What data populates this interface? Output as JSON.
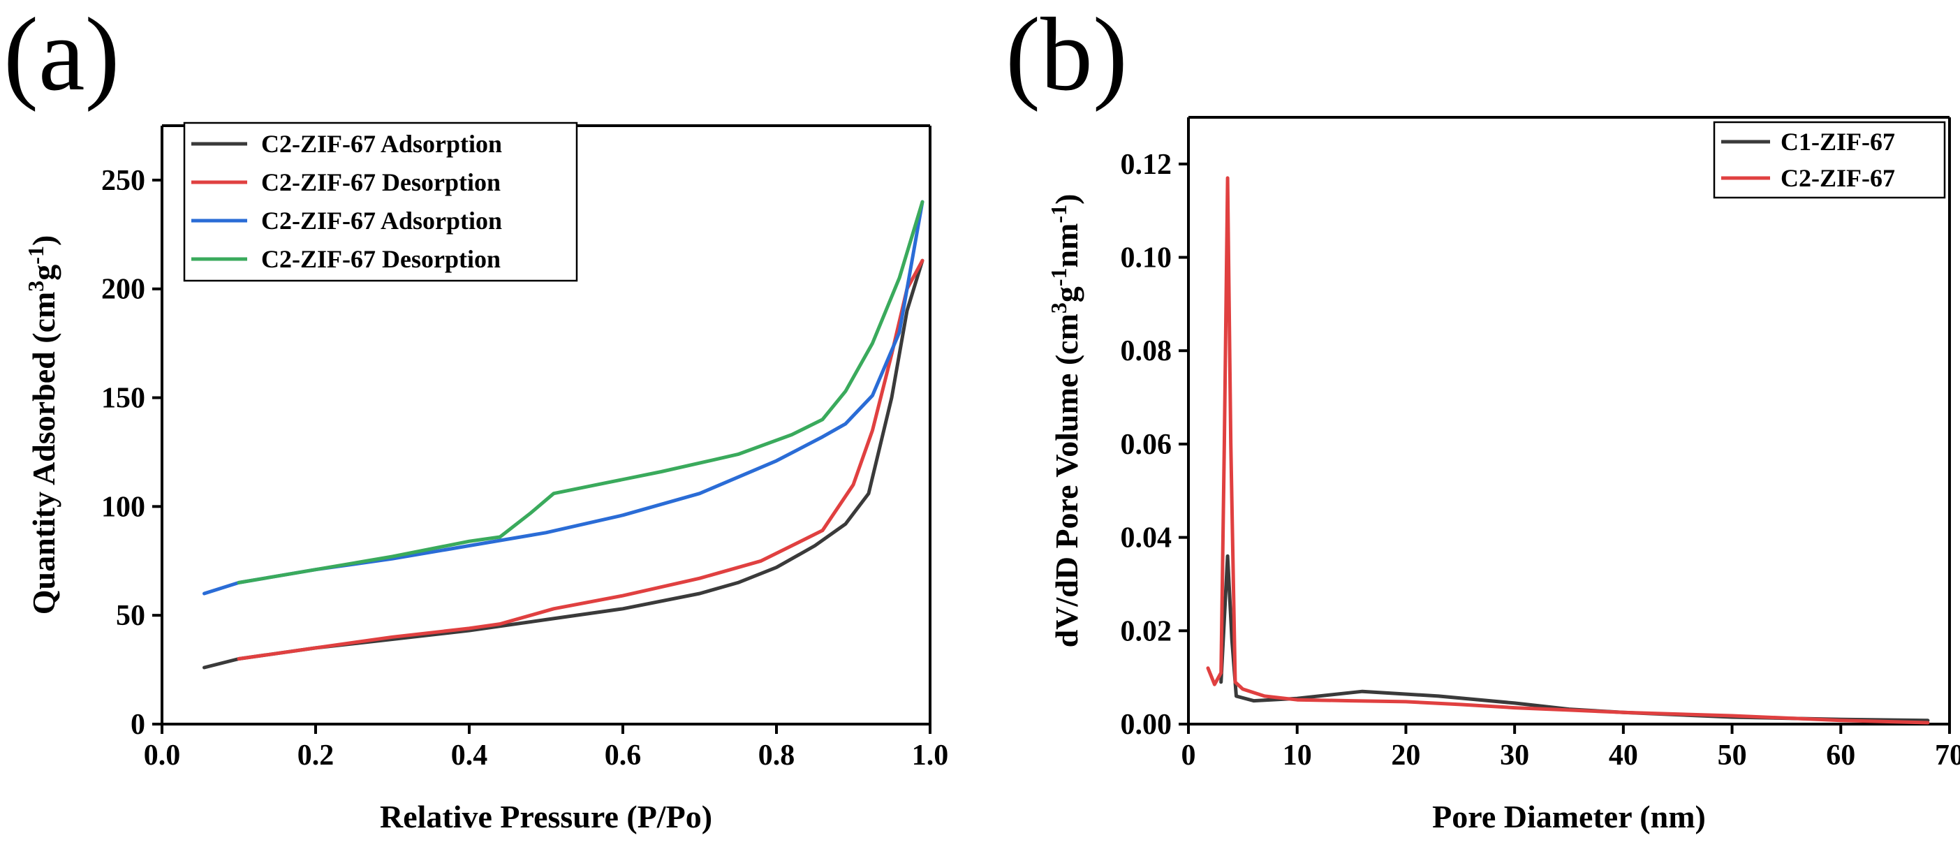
{
  "chart_data": [
    {
      "type": "line",
      "panel_label": "(a)",
      "title": "",
      "xlabel": "Relative Pressure (P/Po)",
      "ylabel_parts": [
        "Quantity Adsorbed (cm",
        "3",
        "g",
        "-1",
        ")"
      ],
      "xlim": [
        0.0,
        1.0
      ],
      "ylim": [
        0,
        275
      ],
      "x_ticks": [
        0.0,
        0.2,
        0.4,
        0.6,
        0.8,
        1.0
      ],
      "x_tick_labels": [
        "0.0",
        "0.2",
        "0.4",
        "0.6",
        "0.8",
        "1.0"
      ],
      "y_ticks": [
        0,
        50,
        100,
        150,
        200,
        250
      ],
      "y_tick_labels": [
        "0",
        "50",
        "100",
        "150",
        "200",
        "250"
      ],
      "grid": false,
      "legend_position": "top-left",
      "series": [
        {
          "name": "C2-ZIF-67 Adsorption",
          "color": "#3a3a3a",
          "x": [
            0.055,
            0.1,
            0.2,
            0.3,
            0.4,
            0.5,
            0.6,
            0.7,
            0.75,
            0.8,
            0.85,
            0.89,
            0.92,
            0.95,
            0.97,
            0.99
          ],
          "y": [
            26,
            30,
            35,
            39,
            43,
            48,
            53,
            60,
            65,
            72,
            82,
            92,
            106,
            150,
            190,
            213
          ]
        },
        {
          "name": "C2-ZIF-67 Desorption",
          "color": "#e04040",
          "x": [
            0.99,
            0.97,
            0.95,
            0.925,
            0.9,
            0.86,
            0.82,
            0.78,
            0.7,
            0.6,
            0.51,
            0.48,
            0.44,
            0.4,
            0.3,
            0.2,
            0.1
          ],
          "y": [
            213,
            200,
            170,
            135,
            110,
            89,
            82,
            75,
            67,
            59,
            53,
            50,
            46,
            44,
            40,
            35,
            30
          ]
        },
        {
          "name": "C2-ZIF-67 Adsorption",
          "color": "#2a6cd6",
          "x": [
            0.055,
            0.1,
            0.2,
            0.3,
            0.4,
            0.5,
            0.6,
            0.7,
            0.8,
            0.86,
            0.89,
            0.925,
            0.96,
            0.99
          ],
          "y": [
            60,
            65,
            71,
            76,
            82,
            88,
            96,
            106,
            121,
            132,
            138,
            151,
            180,
            240
          ]
        },
        {
          "name": "C2-ZIF-67 Desorption",
          "color": "#3aaa5c",
          "x": [
            0.99,
            0.96,
            0.925,
            0.89,
            0.86,
            0.82,
            0.75,
            0.65,
            0.58,
            0.51,
            0.48,
            0.44,
            0.4,
            0.3,
            0.2,
            0.1
          ],
          "y": [
            240,
            205,
            175,
            153,
            140,
            133,
            124,
            116,
            111,
            106,
            97,
            86,
            84,
            77,
            71,
            65
          ]
        }
      ]
    },
    {
      "type": "line",
      "panel_label": "(b)",
      "title": "",
      "xlabel": "Pore Diameter (nm)",
      "ylabel_parts": [
        "dV/dD Pore Volume (cm",
        "3",
        "g",
        "-1",
        "nm",
        "-1",
        ")"
      ],
      "xlim": [
        0,
        70
      ],
      "ylim": [
        0.0,
        0.13
      ],
      "x_ticks": [
        0,
        10,
        20,
        30,
        40,
        50,
        60,
        70
      ],
      "x_tick_labels": [
        "0",
        "10",
        "20",
        "30",
        "40",
        "50",
        "60",
        "70"
      ],
      "y_ticks": [
        0.0,
        0.02,
        0.04,
        0.06,
        0.08,
        0.1,
        0.12
      ],
      "y_tick_labels": [
        "0.00",
        "0.02",
        "0.04",
        "0.06",
        "0.08",
        "0.10",
        "0.12"
      ],
      "grid": false,
      "legend_position": "top-right",
      "series": [
        {
          "name": "C1-ZIF-67",
          "color": "#3a3a3a",
          "x": [
            3.0,
            3.6,
            4.0,
            4.4,
            6.0,
            10,
            16,
            23,
            30,
            35,
            40,
            50,
            60,
            68
          ],
          "y": [
            0.009,
            0.036,
            0.018,
            0.006,
            0.005,
            0.0055,
            0.007,
            0.006,
            0.0045,
            0.0032,
            0.0025,
            0.0015,
            0.001,
            0.0008
          ]
        },
        {
          "name": "C2-ZIF-67",
          "color": "#e04040",
          "x": [
            1.8,
            2.4,
            3.0,
            3.3,
            3.6,
            3.9,
            4.3,
            5.0,
            7.0,
            10,
            15,
            20,
            25,
            30,
            35,
            40,
            50,
            60,
            68
          ],
          "y": [
            0.012,
            0.0085,
            0.011,
            0.06,
            0.117,
            0.06,
            0.009,
            0.0075,
            0.006,
            0.0052,
            0.005,
            0.0048,
            0.0042,
            0.0035,
            0.003,
            0.0025,
            0.0018,
            0.0008,
            0.0003
          ]
        }
      ]
    }
  ]
}
